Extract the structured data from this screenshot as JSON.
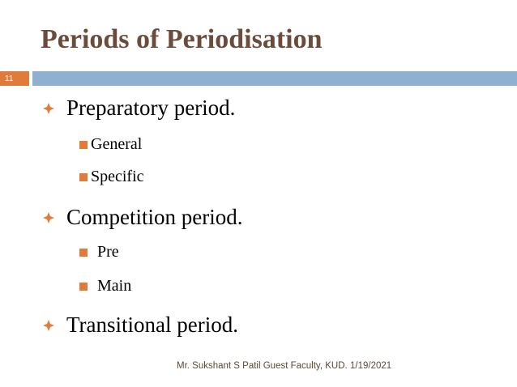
{
  "slide": {
    "title": "Periods of Periodisation",
    "slide_number": "11",
    "bullets": [
      {
        "label": "Preparatory period.",
        "sub": [
          "General",
          "Specific"
        ]
      },
      {
        "label": "Competition period.",
        "sub": [
          "Pre",
          "Main"
        ]
      },
      {
        "label": "Transitional period.",
        "sub": []
      }
    ],
    "footer": {
      "author": "Mr. Sukshant S Patil Guest Faculty, KUD.",
      "date": "1/19/2021"
    }
  },
  "colors": {
    "title": "#6b4c3a",
    "accent_orange": "#e07b3b",
    "accent_blue": "#8fb0d0"
  }
}
